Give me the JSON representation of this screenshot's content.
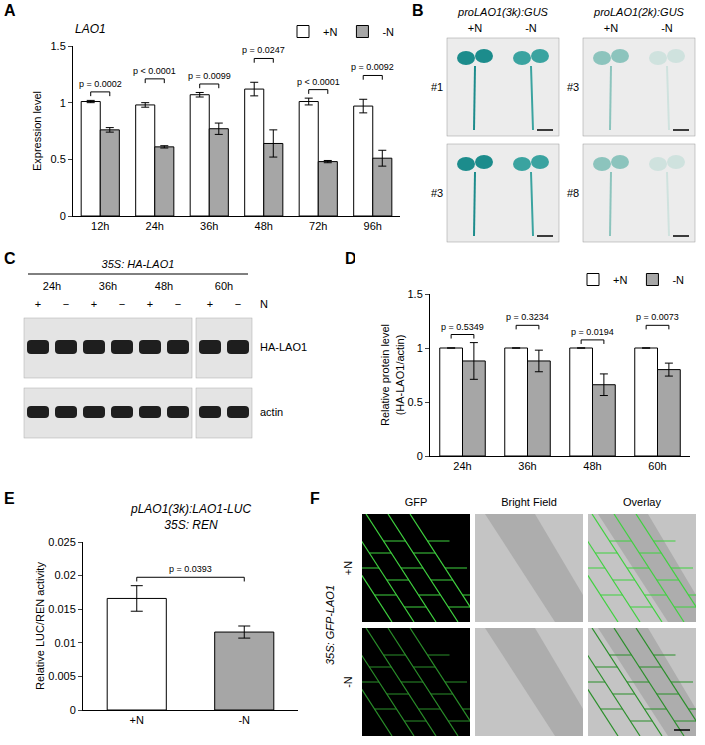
{
  "chart_data": [
    {
      "label": "A",
      "type": "bar",
      "title": "LAO1",
      "y_label": "Expression level",
      "categories": [
        "12h",
        "24h",
        "36h",
        "48h",
        "72h",
        "96h"
      ],
      "series": [
        {
          "name": "+N",
          "color": "#ffffff",
          "values": [
            1.01,
            0.98,
            1.07,
            1.12,
            1.01,
            0.97
          ],
          "errors": [
            0.01,
            0.02,
            0.02,
            0.06,
            0.03,
            0.06
          ]
        },
        {
          "name": "-N",
          "color": "#a6a6a6",
          "values": [
            0.76,
            0.61,
            0.77,
            0.64,
            0.48,
            0.51
          ],
          "errors": [
            0.02,
            0.01,
            0.05,
            0.12,
            0.01,
            0.07
          ]
        }
      ],
      "annotations": [
        "p = 0.0002",
        "p < 0.0001",
        "p = 0.0099",
        "p = 0.0247",
        "p < 0.0001",
        "p = 0.0092"
      ],
      "ylim": [
        0,
        1.5
      ],
      "yticks": [
        0,
        0.5,
        1,
        1.5
      ],
      "grid": false,
      "legend": "top-right"
    },
    {
      "label": "D",
      "type": "bar",
      "y_label": "Relative protein level\n(HA-LAO1/actin)",
      "categories": [
        "24h",
        "36h",
        "48h",
        "60h"
      ],
      "series": [
        {
          "name": "+N",
          "color": "#ffffff",
          "values": [
            1,
            1,
            1,
            1
          ],
          "errors": [
            0,
            0,
            0,
            0
          ]
        },
        {
          "name": "-N",
          "color": "#a6a6a6",
          "values": [
            0.88,
            0.88,
            0.66,
            0.8
          ],
          "errors": [
            0.17,
            0.1,
            0.1,
            0.06
          ]
        }
      ],
      "annotations": [
        "p = 0.5349",
        "p = 0.3234",
        "p = 0.0194",
        "p = 0.0073"
      ],
      "ylim": [
        0,
        1.5
      ],
      "yticks": [
        0,
        0.5,
        1,
        1.5
      ],
      "grid": false,
      "legend": "top-right"
    },
    {
      "label": "E",
      "type": "bar",
      "title": [
        "pLAO1(3k):LAO1-LUC",
        "35S: REN"
      ],
      "y_label": "Relative LUC/REN activity",
      "categories": [
        "+N",
        "-N"
      ],
      "values": [
        0.0166,
        0.0116
      ],
      "errors": [
        0.0019,
        0.0009
      ],
      "colors": [
        "#ffffff",
        "#a6a6a6"
      ],
      "annotations": [
        "p = 0.0393"
      ],
      "ylim": [
        0,
        0.025
      ],
      "yticks": [
        0,
        0.005,
        0.01,
        0.015,
        0.02,
        0.025
      ],
      "grid": false
    }
  ],
  "panels": [
    {
      "label": "B",
      "columns": [
        "proLAO1(3k):GUS",
        "proLAO1(2k):GUS"
      ],
      "conditions": [
        "+N",
        "-N"
      ],
      "lines": [
        [
          "#1",
          "#3"
        ],
        [
          "#3",
          "#8"
        ]
      ]
    },
    {
      "label": "C",
      "title": "35S: HA-LAO1",
      "times": [
        "24h",
        "36h",
        "48h",
        "60h"
      ],
      "lanes": [
        "+",
        "−",
        "+",
        "−",
        "+",
        "−",
        "+",
        "−"
      ],
      "lane_row_label": "N",
      "bands": [
        "HA-LAO1",
        "actin"
      ]
    },
    {
      "label": "F",
      "construct": "35S: GFP-LAO1",
      "columns": [
        "GFP",
        "Bright Field",
        "Overlay"
      ],
      "rows": [
        "+N",
        "-N"
      ]
    }
  ]
}
